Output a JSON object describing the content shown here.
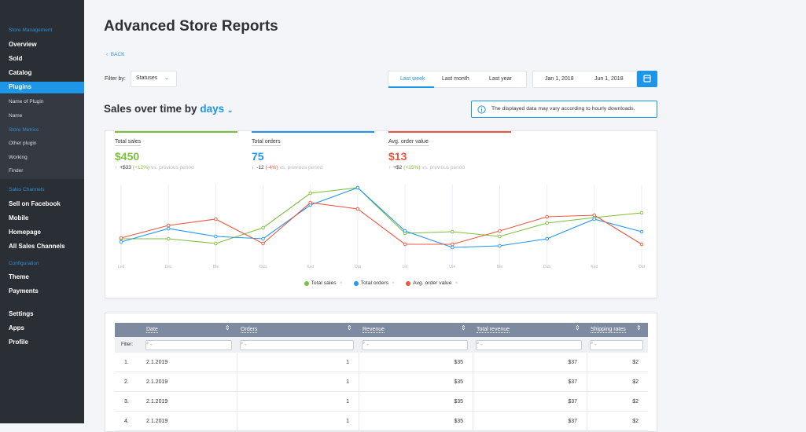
{
  "sidebar": {
    "store_heading": "Store Management",
    "store_items": [
      "Overview",
      "Sold",
      "Catalog",
      "Plugins"
    ],
    "plugin_items": [
      "Name of Plugin",
      "Name"
    ],
    "metrics_heading": "Store Metrics",
    "metrics_items": [
      "Other plugin",
      "Working",
      "Finder"
    ],
    "channels_heading": "Sales Channels",
    "channels_items": [
      "Sell on Facebook",
      "Mobile",
      "Homepage",
      "All Sales Channels"
    ],
    "config_heading": "Configuration",
    "config_items": [
      "Theme",
      "Payments"
    ],
    "bottom_items": [
      "Settings",
      "Apps",
      "Profile"
    ]
  },
  "header": {
    "title": "Advanced Store Reports",
    "back": "BACK",
    "filter_label": "Filter by:",
    "filter_value": "Statuses",
    "periods": [
      "Last week",
      "Last month",
      "Last year"
    ],
    "date_from": "Jan 1, 2018",
    "date_to": "Jun 1, 2018"
  },
  "section": {
    "title": "Sales over time by",
    "unit": "days",
    "info": "The displayed data may vary according to hourly downloads."
  },
  "kpis": [
    {
      "label": "Total sales",
      "value": "$450",
      "change": "+$33",
      "pct": "(+12%)",
      "note": "vs. previous period",
      "color": "#7cbf3c"
    },
    {
      "label": "Total orders",
      "value": "75",
      "change": "-12",
      "pct": "(-4%)",
      "note": "vs. previous period",
      "color": "#2196f3"
    },
    {
      "label": "Avg. order value",
      "value": "$13",
      "change": "+$2",
      "pct": "(+15%)",
      "note": "vs. previous period",
      "color": "#e8583f"
    }
  ],
  "chart_data": {
    "type": "line",
    "categories": [
      "Led",
      "Dec",
      "Bfe",
      "Dub",
      "Ked",
      "Oat",
      "Lot",
      "Ure",
      "Bfe",
      "Dub",
      "Ked",
      "Oat"
    ],
    "ylim": [
      0,
      100
    ],
    "series": [
      {
        "name": "Total sales",
        "color": "#7cbf3c",
        "values": [
          27,
          27,
          21,
          41,
          85,
          92,
          34,
          36,
          30,
          47,
          54,
          60
        ]
      },
      {
        "name": "Total orders",
        "color": "#2196f3",
        "values": [
          23,
          40,
          30,
          27,
          70,
          92,
          37,
          16,
          18,
          27,
          52,
          36
        ]
      },
      {
        "name": "Avg. order value",
        "color": "#e8583f",
        "values": [
          28,
          44,
          52,
          21,
          73,
          65,
          20,
          20,
          37,
          55,
          57,
          20
        ]
      }
    ]
  },
  "table": {
    "columns": [
      "Date",
      "Orders",
      "Revenue",
      "Total revenue",
      "Shipping rates"
    ],
    "filter_label": "Filter:",
    "rows": [
      [
        "1.",
        "2.1.2019",
        "1",
        "$35",
        "$37",
        "$2"
      ],
      [
        "2.",
        "2.1.2019",
        "1",
        "$35",
        "$37",
        "$2"
      ],
      [
        "3.",
        "2.1.2019",
        "1",
        "$35",
        "$37",
        "$2"
      ],
      [
        "4.",
        "2.1.2019",
        "1",
        "$35",
        "$37",
        "$2"
      ]
    ]
  }
}
